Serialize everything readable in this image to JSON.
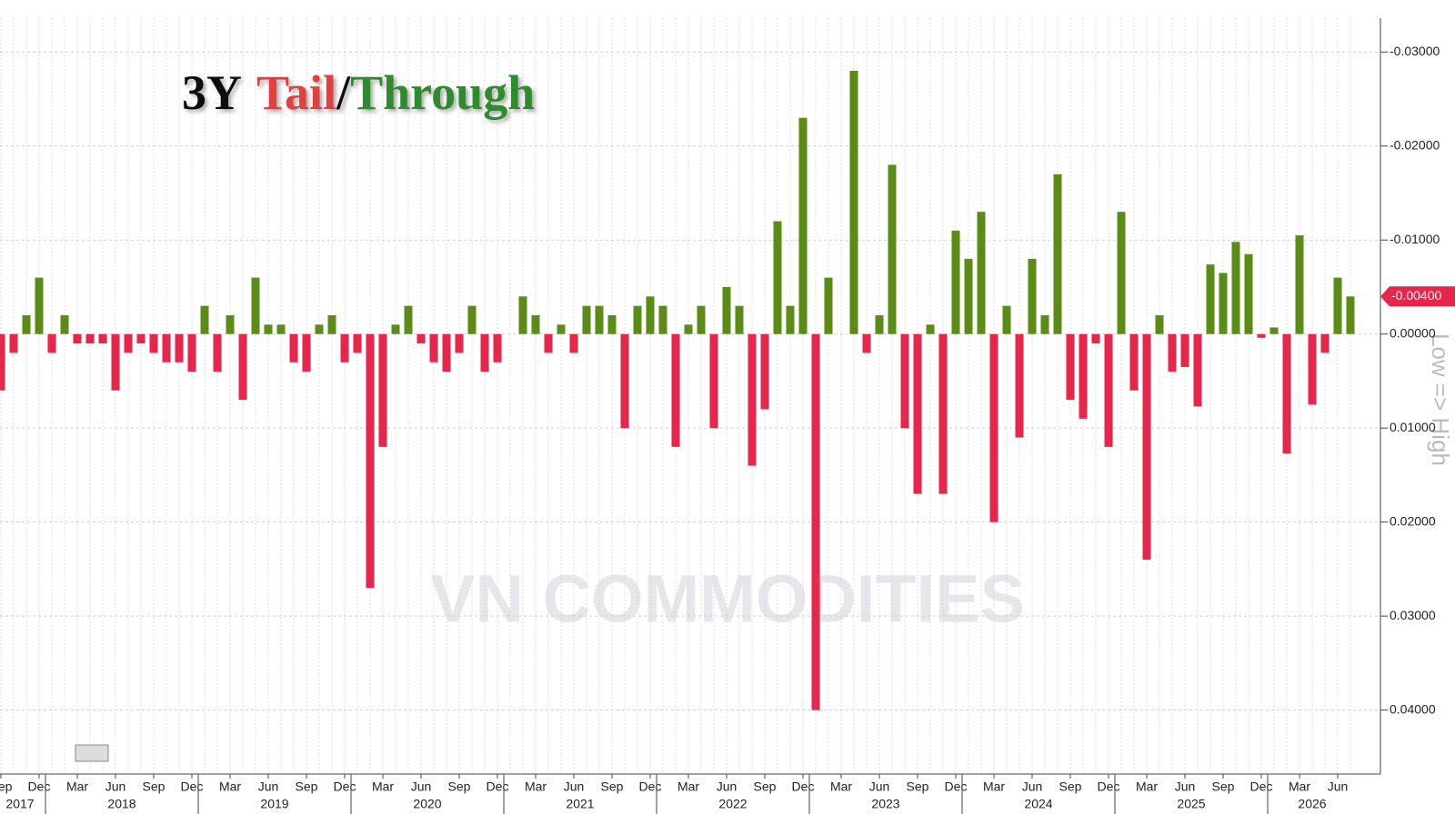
{
  "chart_data": {
    "type": "bar",
    "title_parts": [
      "3Y",
      "Tail",
      "/",
      "Through"
    ],
    "title_colors": [
      "#111111",
      "#e04040",
      "#111111",
      "#2e8b2e"
    ],
    "watermark": "VN COMMODITIES",
    "y_axis_note": "Low => High",
    "y_inverted": true,
    "tail_color": "#e8254a",
    "through_color": "#5a8c16",
    "x": [
      "2017-09",
      "2017-10",
      "2017-11",
      "2017-12",
      "2018-01",
      "2018-02",
      "2018-03",
      "2018-04",
      "2018-05",
      "2018-06",
      "2018-07",
      "2018-08",
      "2018-09",
      "2018-10",
      "2018-11",
      "2018-12",
      "2019-01",
      "2019-02",
      "2019-03",
      "2019-04",
      "2019-05",
      "2019-06",
      "2019-07",
      "2019-08",
      "2019-09",
      "2019-10",
      "2019-11",
      "2019-12",
      "2020-01",
      "2020-02",
      "2020-03",
      "2020-04",
      "2020-05",
      "2020-06",
      "2020-07",
      "2020-08",
      "2020-09",
      "2020-10",
      "2020-11",
      "2020-12",
      "2021-01",
      "2021-02",
      "2021-03",
      "2021-04",
      "2021-05",
      "2021-06",
      "2021-07",
      "2021-08",
      "2021-09",
      "2021-10",
      "2021-11",
      "2021-12",
      "2022-01",
      "2022-02",
      "2022-03",
      "2022-04",
      "2022-05",
      "2022-06",
      "2022-07",
      "2022-08",
      "2022-09",
      "2022-10",
      "2022-11",
      "2022-12",
      "2023-01",
      "2023-02",
      "2023-03",
      "2023-04",
      "2023-05",
      "2023-06",
      "2023-07",
      "2023-08",
      "2023-09",
      "2023-10",
      "2023-11",
      "2023-12",
      "2024-01",
      "2024-02",
      "2024-03",
      "2024-04",
      "2024-05",
      "2024-06",
      "2024-07",
      "2024-08",
      "2024-09",
      "2024-10",
      "2024-11",
      "2024-12",
      "2025-01",
      "2025-02",
      "2025-03",
      "2025-04",
      "2025-05",
      "2025-06",
      "2025-07",
      "2025-08",
      "2025-09",
      "2025-10",
      "2025-11",
      "2025-12",
      "2026-01",
      "2026-02",
      "2026-03",
      "2026-04",
      "2026-05",
      "2026-06",
      "2026-07"
    ],
    "values": [
      0.006,
      0.002,
      -0.002,
      -0.006,
      0.002,
      -0.002,
      0.001,
      0.001,
      0.001,
      0.006,
      0.002,
      0.001,
      0.002,
      0.003,
      0.003,
      0.004,
      -0.003,
      0.004,
      -0.002,
      0.007,
      -0.006,
      -0.001,
      -0.001,
      0.003,
      0.004,
      -0.001,
      -0.002,
      0.003,
      0.002,
      0.027,
      0.012,
      -0.001,
      -0.003,
      0.001,
      0.003,
      0.004,
      0.002,
      -0.003,
      0.004,
      0.003,
      0,
      -0.004,
      -0.002,
      0.002,
      -0.001,
      0.002,
      -0.003,
      -0.003,
      -0.002,
      0.01,
      -0.003,
      -0.004,
      -0.003,
      0.012,
      -0.001,
      -0.003,
      0.01,
      -0.005,
      -0.003,
      0.014,
      0.008,
      -0.012,
      -0.003,
      -0.023,
      0.04,
      -0.006,
      0,
      -0.028,
      0.002,
      -0.002,
      -0.018,
      0.01,
      0.017,
      -0.001,
      0.017,
      -0.011,
      -0.008,
      -0.013,
      0.02,
      -0.003,
      0.011,
      -0.008,
      -0.002,
      -0.017,
      0.007,
      0.009,
      0.001,
      0.012,
      -0.013,
      0.006,
      0.024,
      -0.002,
      0.004,
      0.0035,
      0.0077,
      -0.0074,
      -0.0065,
      -0.0098,
      -0.0085,
      0.0004,
      -0.0007,
      0.0127,
      -0.0105,
      0.0075,
      0.002,
      -0.006,
      -0.004
    ],
    "ylim": [
      -0.0336,
      0.0468
    ],
    "yticks": [
      {
        "value": -0.03,
        "label": "-0.03000"
      },
      {
        "value": -0.02,
        "label": "-0.02000"
      },
      {
        "value": -0.01,
        "label": "-0.01000"
      },
      {
        "value": 0,
        "label": "0.00000"
      },
      {
        "value": 0.01,
        "label": "0.01000"
      },
      {
        "value": 0.02,
        "label": "0.02000"
      },
      {
        "value": 0.03,
        "label": "0.03000"
      },
      {
        "value": 0.04,
        "label": "0.04000"
      }
    ],
    "annotations": [
      {
        "value": -0.004,
        "label": "-0.00400"
      }
    ],
    "xticks": [
      {
        "value": "2017-09",
        "label": "Sep"
      },
      {
        "value": "2017-12",
        "label": "Dec"
      },
      {
        "value": "2018-03",
        "label": "Mar"
      },
      {
        "value": "2018-06",
        "label": "Jun"
      },
      {
        "value": "2018-09",
        "label": "Sep"
      },
      {
        "value": "2018-12",
        "label": "Dec"
      },
      {
        "value": "2019-03",
        "label": "Mar"
      },
      {
        "value": "2019-06",
        "label": "Jun"
      },
      {
        "value": "2019-09",
        "label": "Sep"
      },
      {
        "value": "2019-12",
        "label": "Dec"
      },
      {
        "value": "2020-03",
        "label": "Mar"
      },
      {
        "value": "2020-06",
        "label": "Jun"
      },
      {
        "value": "2020-09",
        "label": "Sep"
      },
      {
        "value": "2020-12",
        "label": "Dec"
      },
      {
        "value": "2021-03",
        "label": "Mar"
      },
      {
        "value": "2021-06",
        "label": "Jun"
      },
      {
        "value": "2021-09",
        "label": "Sep"
      },
      {
        "value": "2021-12",
        "label": "Dec"
      },
      {
        "value": "2022-03",
        "label": "Mar"
      },
      {
        "value": "2022-06",
        "label": "Jun"
      },
      {
        "value": "2022-09",
        "label": "Sep"
      },
      {
        "value": "2022-12",
        "label": "Dec"
      },
      {
        "value": "2023-03",
        "label": "Mar"
      },
      {
        "value": "2023-06",
        "label": "Jun"
      },
      {
        "value": "2023-09",
        "label": "Sep"
      },
      {
        "value": "2023-12",
        "label": "Dec"
      },
      {
        "value": "2024-03",
        "label": "Mar"
      },
      {
        "value": "2024-06",
        "label": "Jun"
      },
      {
        "value": "2024-09",
        "label": "Sep"
      },
      {
        "value": "2024-12",
        "label": "Dec"
      },
      {
        "value": "2025-03",
        "label": "Mar"
      },
      {
        "value": "2025-06",
        "label": "Jun"
      },
      {
        "value": "2025-09",
        "label": "Sep"
      },
      {
        "value": "2025-12",
        "label": "Dec"
      },
      {
        "value": "2026-03",
        "label": "Mar"
      },
      {
        "value": "2026-06",
        "label": "Jun"
      }
    ],
    "year_ticks": [
      "2017",
      "2018",
      "2019",
      "2020",
      "2021",
      "2022",
      "2023",
      "2024",
      "2025",
      "2026"
    ],
    "grid": true
  }
}
